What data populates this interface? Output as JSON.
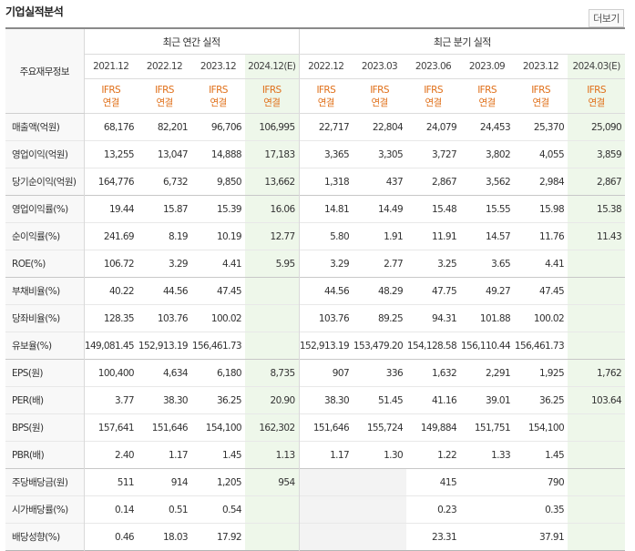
{
  "section": {
    "title": "기업실적분석",
    "more_label": "더보기"
  },
  "table": {
    "corner_label": "주요재무정보",
    "groups": [
      {
        "label": "최근 연간 실적",
        "span": 4
      },
      {
        "label": "최근 분기 실적",
        "span": 6
      }
    ],
    "periods": [
      "2021.12",
      "2022.12",
      "2023.12",
      "2024.12(E)",
      "2022.12",
      "2023.03",
      "2023.06",
      "2023.09",
      "2023.12",
      "2024.03(E)"
    ],
    "estimate_columns": [
      3,
      9
    ],
    "accounting": {
      "line1": "IFRS",
      "line2": "연결"
    },
    "rows": [
      {
        "label": "매출액(억원)",
        "values": [
          "68,176",
          "82,201",
          "96,706",
          "106,995",
          "22,717",
          "22,804",
          "24,079",
          "24,453",
          "25,370",
          "25,090"
        ]
      },
      {
        "label": "영업이익(억원)",
        "values": [
          "13,255",
          "13,047",
          "14,888",
          "17,183",
          "3,365",
          "3,305",
          "3,727",
          "3,802",
          "4,055",
          "3,859"
        ]
      },
      {
        "label": "당기순이익(억원)",
        "values": [
          "164,776",
          "6,732",
          "9,850",
          "13,662",
          "1,318",
          "437",
          "2,867",
          "3,562",
          "2,984",
          "2,867"
        ],
        "sep": true
      },
      {
        "label": "영업이익률(%)",
        "values": [
          "19.44",
          "15.87",
          "15.39",
          "16.06",
          "14.81",
          "14.49",
          "15.48",
          "15.55",
          "15.98",
          "15.38"
        ]
      },
      {
        "label": "순이익률(%)",
        "values": [
          "241.69",
          "8.19",
          "10.19",
          "12.77",
          "5.80",
          "1.91",
          "11.91",
          "14.57",
          "11.76",
          "11.43"
        ]
      },
      {
        "label": "ROE(%)",
        "values": [
          "106.72",
          "3.29",
          "4.41",
          "5.95",
          "3.29",
          "2.77",
          "3.25",
          "3.65",
          "4.41",
          ""
        ],
        "sep": true
      },
      {
        "label": "부채비율(%)",
        "values": [
          "40.22",
          "44.56",
          "47.45",
          "",
          "44.56",
          "48.29",
          "47.75",
          "49.27",
          "47.45",
          ""
        ]
      },
      {
        "label": "당좌비율(%)",
        "values": [
          "128.35",
          "103.76",
          "100.02",
          "",
          "103.76",
          "89.25",
          "94.31",
          "101.88",
          "100.02",
          ""
        ]
      },
      {
        "label": "유보율(%)",
        "values": [
          "149,081.45",
          "152,913.19",
          "156,461.73",
          "",
          "152,913.19",
          "153,479.20",
          "154,128.58",
          "156,110.44",
          "156,461.73",
          ""
        ],
        "sep": true
      },
      {
        "label": "EPS(원)",
        "values": [
          "100,400",
          "4,634",
          "6,180",
          "8,735",
          "907",
          "336",
          "1,632",
          "2,291",
          "1,925",
          "1,762"
        ]
      },
      {
        "label": "PER(배)",
        "values": [
          "3.77",
          "38.30",
          "36.25",
          "20.90",
          "38.30",
          "51.45",
          "41.16",
          "39.01",
          "36.25",
          "103.64"
        ]
      },
      {
        "label": "BPS(원)",
        "values": [
          "157,641",
          "151,646",
          "154,100",
          "162,302",
          "151,646",
          "155,724",
          "149,884",
          "151,751",
          "154,100",
          ""
        ]
      },
      {
        "label": "PBR(배)",
        "values": [
          "2.40",
          "1.17",
          "1.45",
          "1.13",
          "1.17",
          "1.30",
          "1.22",
          "1.33",
          "1.45",
          ""
        ],
        "sep": true
      },
      {
        "label": "주당배당금(원)",
        "values": [
          "511",
          "914",
          "1,205",
          "954",
          "",
          "",
          "415",
          "",
          "790",
          ""
        ],
        "grey": [
          4,
          5
        ]
      },
      {
        "label": "시가배당률(%)",
        "values": [
          "0.14",
          "0.51",
          "0.54",
          "",
          "",
          "",
          "0.23",
          "",
          "0.35",
          ""
        ],
        "grey": [
          4,
          5
        ]
      },
      {
        "label": "배당성향(%)",
        "values": [
          "0.46",
          "18.03",
          "17.92",
          "",
          "",
          "",
          "23.31",
          "",
          "37.91",
          ""
        ],
        "grey": [
          4,
          5
        ]
      }
    ]
  }
}
